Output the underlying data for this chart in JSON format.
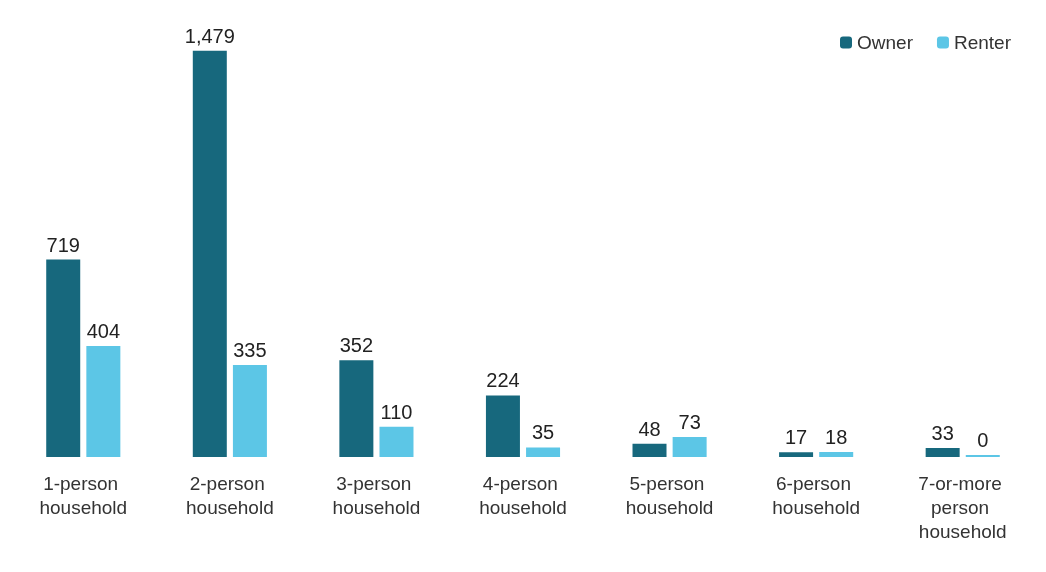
{
  "chart_data": {
    "type": "bar",
    "categories": [
      "1-person household",
      "2-person household",
      "3-person household",
      "4-person household",
      "5-person household",
      "6-person household",
      "7-or-more person household"
    ],
    "series": [
      {
        "name": "Owner",
        "color": "#17687d",
        "values": [
          719,
          1479,
          352,
          224,
          48,
          17,
          33
        ],
        "value_labels": [
          "719",
          "1,479",
          "352",
          "224",
          "48",
          "17",
          "33"
        ]
      },
      {
        "name": "Renter",
        "color": "#5cc6e6",
        "values": [
          404,
          335,
          110,
          35,
          73,
          18,
          0
        ],
        "value_labels": [
          "404",
          "335",
          "110",
          "35",
          "73",
          "18",
          "0"
        ]
      }
    ],
    "legend": "top right",
    "grid": false
  }
}
